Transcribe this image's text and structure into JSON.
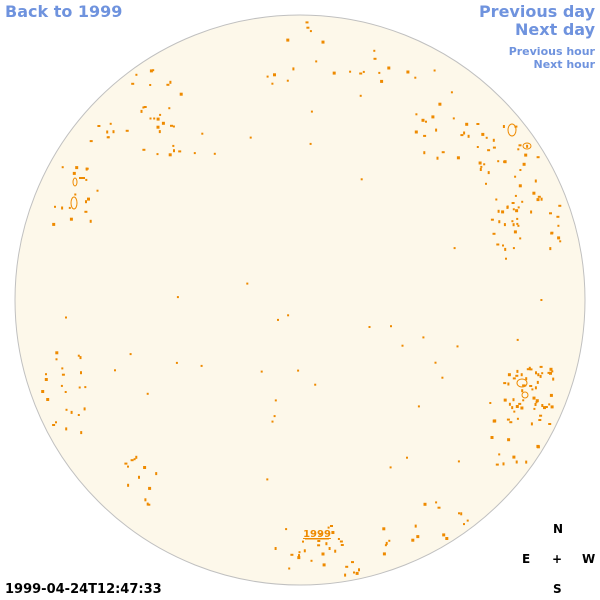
{
  "nav": {
    "back": "Back to 1999",
    "previous_day": "Previous day",
    "next_day": "Next day",
    "previous_hour": "Previous hour",
    "next_hour": "Next hour"
  },
  "disk": {
    "year_link": "1999",
    "fill_color": "#fdf8ea",
    "outline_color": "#c0c0c0",
    "feature_color": "#ee8a00"
  },
  "timestamp": "1999-04-24T12:47:33",
  "compass": {
    "north": "N",
    "east": "E",
    "center": "+",
    "west": "W",
    "south": "S"
  }
}
